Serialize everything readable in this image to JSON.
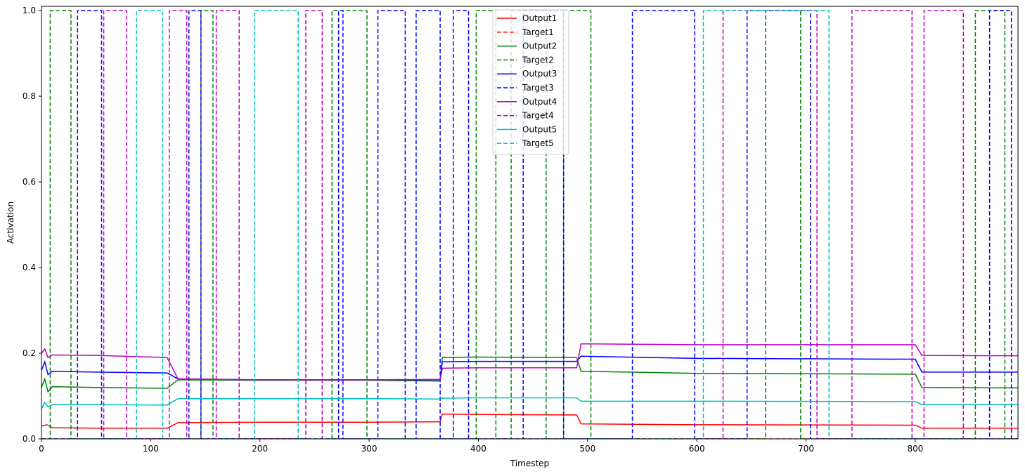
{
  "chart_data": {
    "type": "line",
    "title": "",
    "xlabel": "Timestep",
    "ylabel": "Activation",
    "xlim": [
      0,
      894
    ],
    "ylim": [
      0,
      1.01
    ],
    "x_ticks": [
      "0",
      "100",
      "200",
      "300",
      "400",
      "500",
      "600",
      "700",
      "800"
    ],
    "y_ticks": [
      "0.0",
      "0.2",
      "0.4",
      "0.6",
      "0.8",
      "1.0"
    ],
    "grid": false,
    "legend_position": "top-center",
    "colors": {
      "1": "#ff0000",
      "2": "#008000",
      "3": "#0000ff",
      "4": "#bf00bf",
      "5": "#00bfbf"
    },
    "series": [
      {
        "name": "Output1",
        "style": "solid",
        "color": "#ff0000",
        "points": [
          [
            0,
            0.03
          ],
          [
            5,
            0.033
          ],
          [
            10,
            0.026
          ],
          [
            50,
            0.025
          ],
          [
            115,
            0.025
          ],
          [
            125,
            0.038
          ],
          [
            200,
            0.039
          ],
          [
            300,
            0.039
          ],
          [
            365,
            0.04
          ],
          [
            367,
            0.058
          ],
          [
            400,
            0.057
          ],
          [
            490,
            0.056
          ],
          [
            494,
            0.035
          ],
          [
            600,
            0.033
          ],
          [
            800,
            0.032
          ],
          [
            806,
            0.025
          ],
          [
            894,
            0.025
          ]
        ]
      },
      {
        "name": "Target1",
        "style": "dashed",
        "color": "#ff0000",
        "intervals": []
      },
      {
        "name": "Output2",
        "style": "solid",
        "color": "#008000",
        "points": [
          [
            0,
            0.12
          ],
          [
            3,
            0.14
          ],
          [
            6,
            0.11
          ],
          [
            10,
            0.122
          ],
          [
            50,
            0.12
          ],
          [
            115,
            0.118
          ],
          [
            125,
            0.138
          ],
          [
            200,
            0.137
          ],
          [
            300,
            0.137
          ],
          [
            365,
            0.135
          ],
          [
            367,
            0.19
          ],
          [
            400,
            0.191
          ],
          [
            490,
            0.19
          ],
          [
            494,
            0.158
          ],
          [
            600,
            0.153
          ],
          [
            800,
            0.151
          ],
          [
            806,
            0.12
          ],
          [
            894,
            0.119
          ]
        ]
      },
      {
        "name": "Target2",
        "style": "dashed",
        "color": "#008000",
        "intervals": [
          [
            8,
            27
          ],
          [
            146,
            157
          ],
          [
            266,
            298
          ],
          [
            398,
            416
          ],
          [
            430,
            462
          ],
          [
            478,
            503
          ],
          [
            663,
            695
          ],
          [
            855,
            882
          ]
        ]
      },
      {
        "name": "Output3",
        "style": "solid",
        "color": "#0000ff",
        "points": [
          [
            0,
            0.16
          ],
          [
            3,
            0.18
          ],
          [
            6,
            0.15
          ],
          [
            10,
            0.158
          ],
          [
            50,
            0.156
          ],
          [
            115,
            0.154
          ],
          [
            125,
            0.14
          ],
          [
            200,
            0.138
          ],
          [
            300,
            0.138
          ],
          [
            365,
            0.138
          ],
          [
            367,
            0.18
          ],
          [
            400,
            0.181
          ],
          [
            490,
            0.181
          ],
          [
            494,
            0.193
          ],
          [
            600,
            0.188
          ],
          [
            800,
            0.186
          ],
          [
            806,
            0.156
          ],
          [
            894,
            0.156
          ]
        ]
      },
      {
        "name": "Target3",
        "style": "dashed",
        "color": "#0000ff",
        "intervals": [
          [
            33,
            55
          ],
          [
            135,
            146
          ],
          [
            272,
            276
          ],
          [
            308,
            333
          ],
          [
            343,
            365
          ],
          [
            377,
            391
          ],
          [
            441,
            478
          ],
          [
            541,
            598
          ],
          [
            646,
            704
          ],
          [
            868,
            888
          ]
        ]
      },
      {
        "name": "Output4",
        "style": "solid",
        "color": "#bf00bf",
        "points": [
          [
            0,
            0.2
          ],
          [
            3,
            0.21
          ],
          [
            6,
            0.19
          ],
          [
            10,
            0.196
          ],
          [
            50,
            0.195
          ],
          [
            115,
            0.19
          ],
          [
            125,
            0.14
          ],
          [
            200,
            0.138
          ],
          [
            300,
            0.138
          ],
          [
            365,
            0.139
          ],
          [
            367,
            0.165
          ],
          [
            400,
            0.166
          ],
          [
            490,
            0.166
          ],
          [
            494,
            0.222
          ],
          [
            600,
            0.22
          ],
          [
            800,
            0.22
          ],
          [
            806,
            0.195
          ],
          [
            894,
            0.194
          ]
        ]
      },
      {
        "name": "Target4",
        "style": "dashed",
        "color": "#bf00bf",
        "intervals": [
          [
            57,
            78
          ],
          [
            117,
            133
          ],
          [
            160,
            181
          ],
          [
            242,
            257
          ],
          [
            624,
            710
          ],
          [
            742,
            797
          ],
          [
            808,
            844
          ]
        ]
      },
      {
        "name": "Output5",
        "style": "solid",
        "color": "#00bfbf",
        "points": [
          [
            0,
            0.07
          ],
          [
            3,
            0.085
          ],
          [
            6,
            0.075
          ],
          [
            10,
            0.08
          ],
          [
            50,
            0.08
          ],
          [
            115,
            0.079
          ],
          [
            125,
            0.094
          ],
          [
            200,
            0.094
          ],
          [
            300,
            0.094
          ],
          [
            365,
            0.093
          ],
          [
            367,
            0.095
          ],
          [
            400,
            0.096
          ],
          [
            490,
            0.096
          ],
          [
            494,
            0.088
          ],
          [
            600,
            0.088
          ],
          [
            800,
            0.087
          ],
          [
            806,
            0.08
          ],
          [
            894,
            0.08
          ]
        ]
      },
      {
        "name": "Target5",
        "style": "dashed",
        "color": "#00bfbf",
        "intervals": [
          [
            87,
            111
          ],
          [
            195,
            235
          ],
          [
            606,
            721
          ]
        ]
      }
    ]
  }
}
